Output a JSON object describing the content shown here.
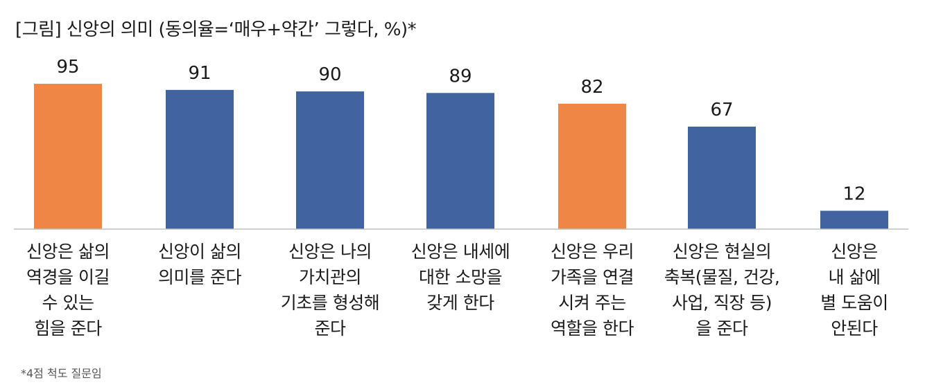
{
  "chart_data": {
    "type": "bar",
    "title": "[그림] 신앙의 의미 (동의율=‘매우+약간’ 그렇다, %)*",
    "categories": [
      "신앙은 삶의\n역경을 이길\n수 있는\n힘을 준다",
      "신앙이 삶의\n의미를 준다",
      "신앙은 나의\n가치관의\n기초를 형성해\n준다",
      "신앙은 내세에\n대한 소망을\n갖게 한다",
      "신앙은 우리\n가족을 연결\n시켜 주는\n역할을 한다",
      "신앙은 현실의\n축복(물질, 건강,\n사업, 직장 등)\n을 준다",
      "신앙은\n내 삶에\n별 도움이\n안된다"
    ],
    "values": [
      95,
      91,
      90,
      89,
      82,
      67,
      12
    ],
    "highlight": [
      true,
      false,
      false,
      false,
      true,
      false,
      false
    ],
    "colors": {
      "default": "#41639f",
      "highlight": "#f08646",
      "axis": "#bfbfbf"
    },
    "ylim": [
      0,
      100
    ],
    "grid": false,
    "legend": "none",
    "footnote": "*4점 척도 질문임"
  }
}
